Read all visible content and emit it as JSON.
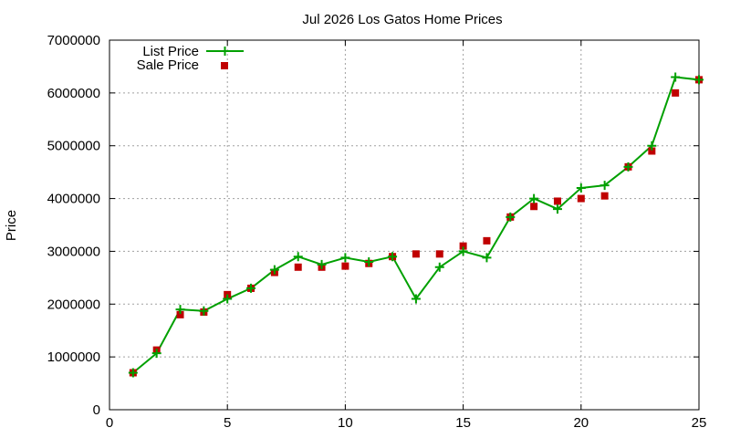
{
  "chart_data": {
    "type": "line",
    "title": "Jul 2026 Los Gatos Home Prices",
    "xlabel": "",
    "ylabel": "Price",
    "xlim": [
      0,
      25
    ],
    "ylim": [
      0,
      7000000
    ],
    "xticks": [
      0,
      5,
      10,
      15,
      20,
      25
    ],
    "yticks": [
      0,
      1000000,
      2000000,
      3000000,
      4000000,
      5000000,
      6000000,
      7000000
    ],
    "grid": true,
    "legend_position": "top-left",
    "x": [
      1,
      2,
      3,
      4,
      5,
      6,
      7,
      8,
      9,
      10,
      11,
      12,
      13,
      14,
      15,
      16,
      17,
      18,
      19,
      20,
      21,
      22,
      23,
      24,
      25
    ],
    "series": [
      {
        "name": "List Price",
        "style": "line-with-plus-markers",
        "color": "#00a000",
        "values": [
          700000,
          1070000,
          1900000,
          1870000,
          2100000,
          2300000,
          2650000,
          2900000,
          2750000,
          2880000,
          2800000,
          2900000,
          2100000,
          2700000,
          3000000,
          2880000,
          3650000,
          4000000,
          3800000,
          4200000,
          4250000,
          4600000,
          5000000,
          6300000,
          6250000
        ]
      },
      {
        "name": "Sale Price",
        "style": "square-markers",
        "color": "#c00000",
        "values": [
          700000,
          1130000,
          1800000,
          1850000,
          2180000,
          2300000,
          2600000,
          2700000,
          2700000,
          2720000,
          2770000,
          2900000,
          2950000,
          2950000,
          3100000,
          3200000,
          3650000,
          3850000,
          3950000,
          4000000,
          4050000,
          4600000,
          4900000,
          6000000,
          6250000
        ]
      }
    ]
  }
}
